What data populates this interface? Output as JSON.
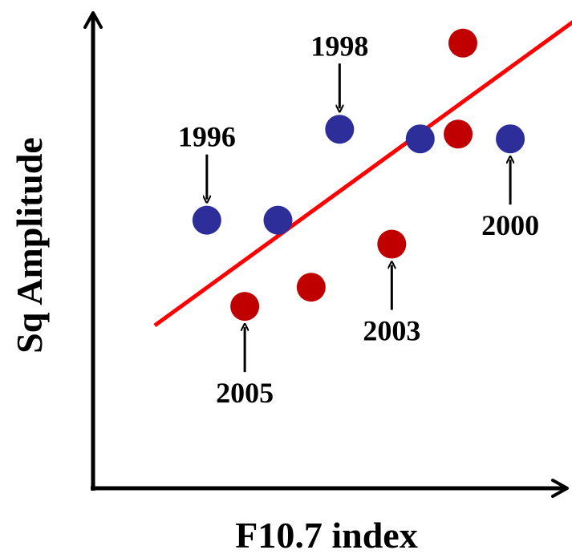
{
  "chart_data": {
    "type": "scatter",
    "title": "",
    "xlabel": "F10.7 index",
    "ylabel": "Sq Amplitude",
    "xlim": [
      0,
      10
    ],
    "ylim": [
      0,
      10
    ],
    "grid": false,
    "axis_ticks": false,
    "series": [
      {
        "color": "#2e2e9a",
        "points": [
          {
            "x": 2.4,
            "y": 5.6
          },
          {
            "x": 3.9,
            "y": 5.6
          },
          {
            "x": 5.2,
            "y": 7.5
          },
          {
            "x": 6.9,
            "y": 7.3
          },
          {
            "x": 8.8,
            "y": 7.3
          }
        ]
      },
      {
        "color": "#c00000",
        "points": [
          {
            "x": 3.2,
            "y": 3.8
          },
          {
            "x": 4.6,
            "y": 4.2
          },
          {
            "x": 6.3,
            "y": 5.1
          },
          {
            "x": 7.7,
            "y": 7.4
          },
          {
            "x": 7.8,
            "y": 9.3
          }
        ]
      }
    ],
    "trendline": {
      "color": "#ff0000",
      "from": {
        "x": 1.3,
        "y": 3.4
      },
      "to": {
        "x": 10.2,
        "y": 9.8
      }
    },
    "annotations": [
      {
        "text": "1996",
        "x": 2.4,
        "y": 5.6,
        "direction": "down"
      },
      {
        "text": "1998",
        "x": 5.2,
        "y": 7.5,
        "direction": "down"
      },
      {
        "text": "2000",
        "x": 8.8,
        "y": 7.3,
        "direction": "up"
      },
      {
        "text": "2003",
        "x": 6.3,
        "y": 5.1,
        "direction": "up"
      },
      {
        "text": "2005",
        "x": 3.2,
        "y": 3.8,
        "direction": "up"
      }
    ]
  }
}
